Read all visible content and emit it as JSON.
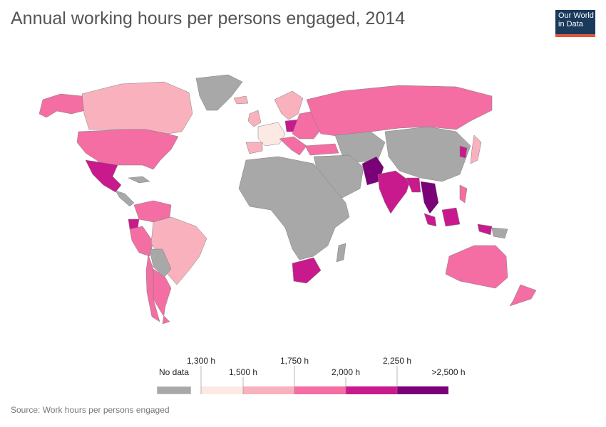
{
  "title": "Annual working hours per persons engaged, 2014",
  "logo": {
    "line1": "Our World",
    "line2": "in Data"
  },
  "source": "Source: Work hours per persons engaged",
  "colors": {
    "no_data": "#a8a8a8",
    "bin1": "#fde9e3",
    "bin2": "#f9b2bd",
    "bin3": "#f46ea3",
    "bin4": "#c91a8d",
    "bin5": "#7a0177"
  },
  "legend": {
    "no_data_label": "No data",
    "top_labels": [
      "1,300 h",
      "1,750 h",
      "2,250 h"
    ],
    "bottom_labels": [
      "1,500 h",
      "2,000 h",
      ">2,500 h"
    ]
  },
  "map_data": {
    "type": "choropleth",
    "year": "2014",
    "bins": [
      "1,300 h",
      "1,500 h",
      "1,750 h",
      "2,000 h",
      "2,250 h",
      ">2,500 h"
    ]
  }
}
